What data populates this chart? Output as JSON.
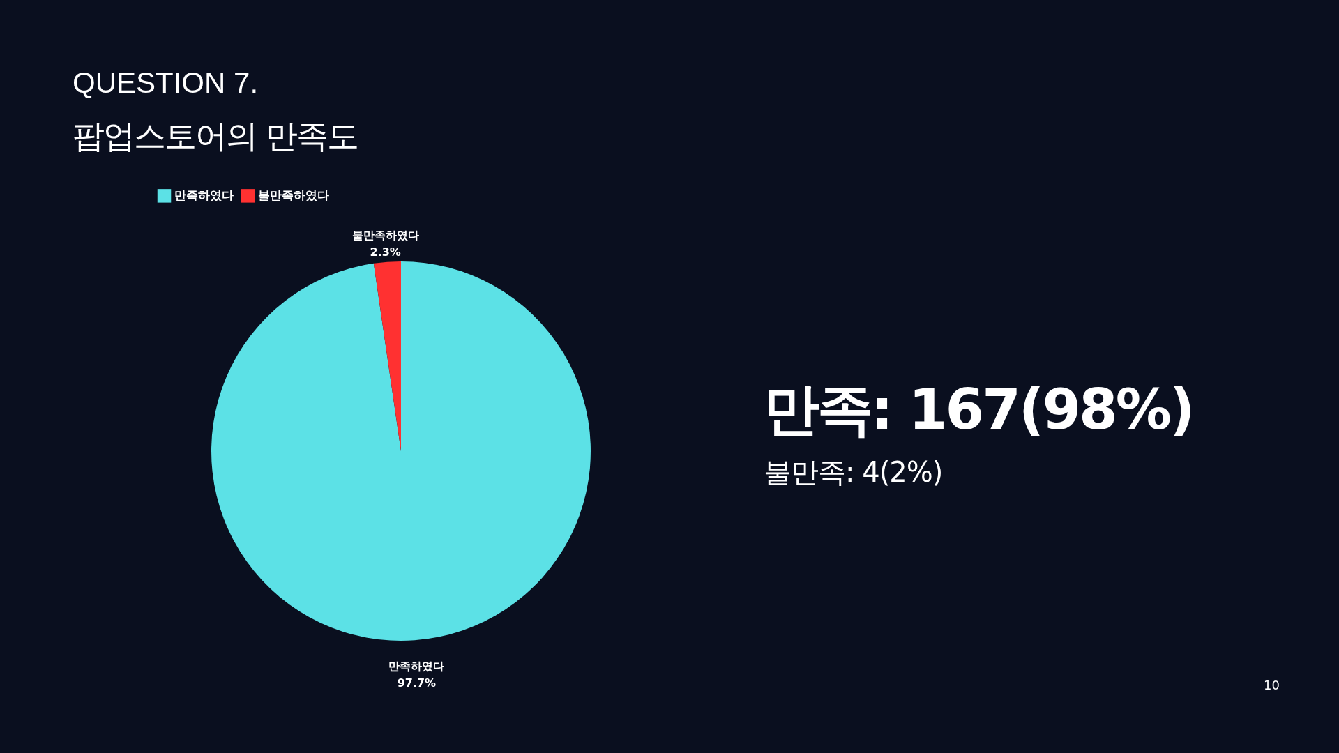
{
  "chart_data": {
    "type": "pie",
    "title": "QUESTION 7.",
    "subtitle": "팝업스토어의 만족도",
    "categories": [
      "만족하였다",
      "불만족하였다"
    ],
    "values": [
      97.7,
      2.3
    ],
    "colors": [
      "#5ce1e6",
      "#ff3131"
    ],
    "value_labels": [
      "97.7%",
      "2.3%"
    ],
    "legend": "top",
    "annotations": [
      "만족: 167(98%)",
      "불만족: 4(2%)",
      "10"
    ]
  }
}
